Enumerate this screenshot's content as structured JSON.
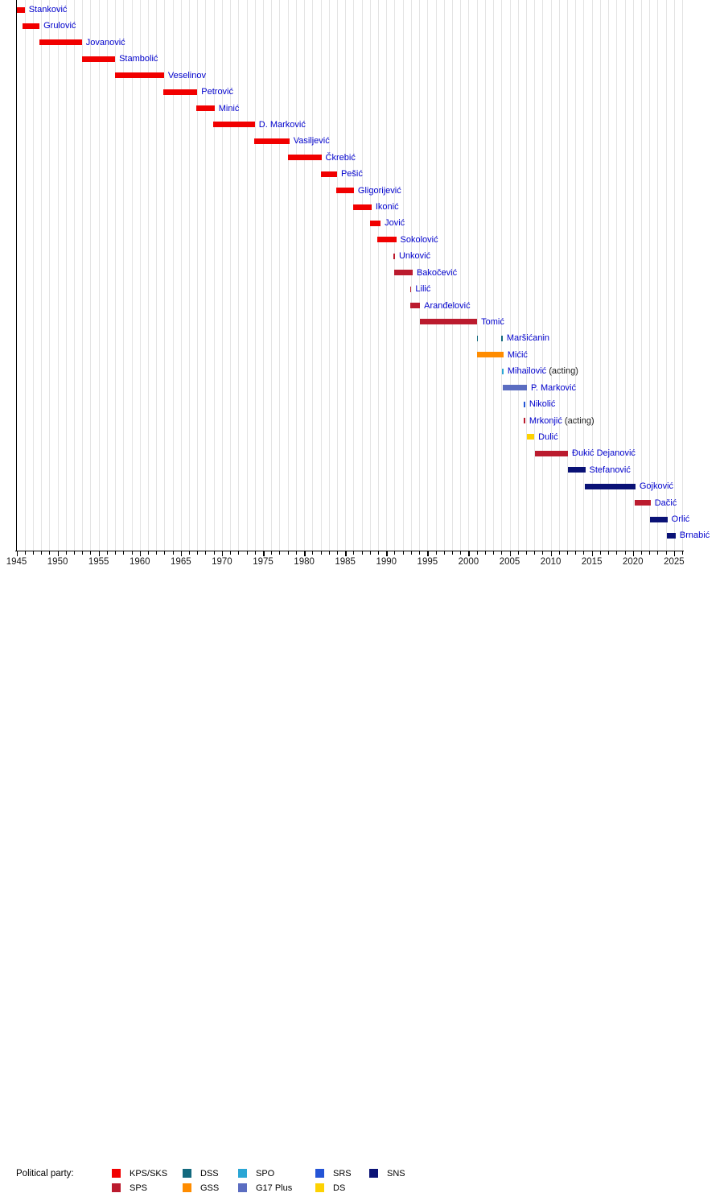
{
  "chart_data": {
    "type": "timeline",
    "description": "Gantt-style timeline of office holders colored by political party",
    "x_axis": {
      "min_year": 1945,
      "max_year": 2026,
      "gridline_interval_years": 1,
      "label_interval_years": 5,
      "tick_labels": [
        "1945",
        "1950",
        "1955",
        "1960",
        "1965",
        "1970",
        "1975",
        "1980",
        "1985",
        "1990",
        "1995",
        "2000",
        "2005",
        "2010",
        "2015",
        "2020",
        "2025"
      ]
    },
    "legend": {
      "label": "Political party:",
      "parties": [
        {
          "name": "KPS/SKS",
          "color": "#f10000"
        },
        {
          "name": "SPS",
          "color": "#bb1b2e"
        },
        {
          "name": "DSS",
          "color": "#12697e"
        },
        {
          "name": "GSS",
          "color": "#ff8c00"
        },
        {
          "name": "SPO",
          "color": "#2aa6d5"
        },
        {
          "name": "G17 Plus",
          "color": "#5b6dc1"
        },
        {
          "name": "SRS",
          "color": "#2454d6"
        },
        {
          "name": "DS",
          "color": "#fdd202"
        },
        {
          "name": "SNS",
          "color": "#0a1276"
        }
      ]
    },
    "rows": [
      {
        "name": "Stanković",
        "party": "KPS/SKS",
        "segments": [
          [
            1945.0,
            1946.0
          ]
        ]
      },
      {
        "name": "Grulović",
        "party": "KPS/SKS",
        "segments": [
          [
            1945.75,
            1947.8
          ]
        ]
      },
      {
        "name": "Jovanović",
        "party": "KPS/SKS",
        "segments": [
          [
            1947.8,
            1952.95
          ]
        ]
      },
      {
        "name": "Stambolić",
        "party": "KPS/SKS",
        "segments": [
          [
            1952.95,
            1957.0
          ]
        ]
      },
      {
        "name": "Veselinov",
        "party": "KPS/SKS",
        "segments": [
          [
            1956.95,
            1962.95
          ]
        ]
      },
      {
        "name": "Petrović",
        "party": "KPS/SKS",
        "segments": [
          [
            1962.9,
            1967.0
          ]
        ]
      },
      {
        "name": "Minić",
        "party": "KPS/SKS",
        "segments": [
          [
            1966.9,
            1969.1
          ]
        ]
      },
      {
        "name": "D. Marković",
        "party": "KPS/SKS",
        "segments": [
          [
            1968.95,
            1974.0
          ]
        ]
      },
      {
        "name": "Vasiljević",
        "party": "KPS/SKS",
        "segments": [
          [
            1973.95,
            1978.2
          ]
        ]
      },
      {
        "name": "Čkrebić",
        "party": "KPS/SKS",
        "segments": [
          [
            1978.05,
            1982.1
          ]
        ]
      },
      {
        "name": "Pešić",
        "party": "KPS/SKS",
        "segments": [
          [
            1982.05,
            1984.0
          ]
        ]
      },
      {
        "name": "Gligorijević",
        "party": "KPS/SKS",
        "segments": [
          [
            1983.95,
            1986.05
          ]
        ]
      },
      {
        "name": "Ikonić",
        "party": "KPS/SKS",
        "segments": [
          [
            1986.0,
            1988.2
          ]
        ]
      },
      {
        "name": "Jović",
        "party": "KPS/SKS",
        "segments": [
          [
            1988.0,
            1989.3
          ]
        ]
      },
      {
        "name": "Sokolović",
        "party": "KPS/SKS",
        "segments": [
          [
            1988.9,
            1991.2
          ]
        ]
      },
      {
        "name": "Unković",
        "party": "SPS",
        "segments": [
          [
            1990.9,
            1991.05
          ]
        ]
      },
      {
        "name": "Bakočević",
        "party": "SPS",
        "segments": [
          [
            1991.0,
            1993.2
          ]
        ]
      },
      {
        "name": "Lilić",
        "party": "SPS",
        "segments": [
          [
            1992.9,
            1993.05
          ]
        ]
      },
      {
        "name": "Aranđelović",
        "party": "SPS",
        "segments": [
          [
            1992.95,
            1994.1
          ]
        ]
      },
      {
        "name": "Tomić",
        "party": "SPS",
        "segments": [
          [
            1994.05,
            2001.05
          ]
        ]
      },
      {
        "name": "Maršićanin",
        "party": "DSS",
        "segments": [
          [
            2001.0,
            2001.15
          ],
          [
            2004.0,
            2004.15
          ]
        ]
      },
      {
        "name": "Mićić",
        "party": "GSS",
        "segments": [
          [
            2001.0,
            2004.25
          ]
        ]
      },
      {
        "name": "Mihailović",
        "suffix": " (acting)",
        "party": "SPO",
        "segments": [
          [
            2004.1,
            2004.25
          ]
        ]
      },
      {
        "name": "P. Marković",
        "party": "G17 Plus",
        "segments": [
          [
            2004.2,
            2007.1
          ]
        ]
      },
      {
        "name": "Nikolić",
        "party": "SRS",
        "segments": [
          [
            2006.75,
            2006.9
          ]
        ]
      },
      {
        "name": "Mrkonjić",
        "suffix": " (acting)",
        "party": "SPS",
        "segments": [
          [
            2006.75,
            2006.9
          ]
        ]
      },
      {
        "name": "Dulić",
        "party": "DS",
        "segments": [
          [
            2007.1,
            2008.0
          ]
        ]
      },
      {
        "name": "Đukić Dejanović",
        "party": "SPS",
        "segments": [
          [
            2008.05,
            2012.1
          ]
        ]
      },
      {
        "name": "Stefanović",
        "party": "SNS",
        "segments": [
          [
            2012.1,
            2014.2
          ]
        ]
      },
      {
        "name": "Gojković",
        "party": "SNS",
        "segments": [
          [
            2014.15,
            2020.3
          ]
        ]
      },
      {
        "name": "Dačić",
        "party": "SPS",
        "segments": [
          [
            2020.25,
            2022.15
          ]
        ]
      },
      {
        "name": "Orlić",
        "party": "SNS",
        "segments": [
          [
            2022.1,
            2024.2
          ]
        ]
      },
      {
        "name": "Brnabić",
        "party": "SNS",
        "segments": [
          [
            2024.1,
            2025.2
          ]
        ]
      }
    ]
  }
}
